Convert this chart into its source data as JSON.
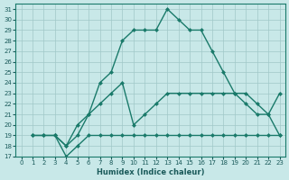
{
  "xlabel": "Humidex (Indice chaleur)",
  "bg_color": "#c8e8e8",
  "grid_color": "#a0c8c8",
  "line_color": "#1a7a6a",
  "xlim": [
    -0.5,
    23.5
  ],
  "ylim": [
    17,
    31.5
  ],
  "yticks": [
    17,
    18,
    19,
    20,
    21,
    22,
    23,
    24,
    25,
    26,
    27,
    28,
    29,
    30,
    31
  ],
  "xticks": [
    0,
    1,
    2,
    3,
    4,
    5,
    6,
    7,
    8,
    9,
    10,
    11,
    12,
    13,
    14,
    15,
    16,
    17,
    18,
    19,
    20,
    21,
    22,
    23
  ],
  "line1_x": [
    1,
    2,
    3,
    4,
    5,
    6,
    7,
    8,
    9,
    10,
    11,
    12,
    13,
    14,
    15,
    16,
    17,
    18,
    19,
    20,
    21,
    22,
    23
  ],
  "line1_y": [
    19,
    19,
    19,
    18,
    19,
    21,
    24,
    25,
    28,
    29,
    29,
    29,
    31,
    30,
    29,
    29,
    27,
    25,
    23,
    22,
    21,
    21,
    23
  ],
  "line2_x": [
    1,
    2,
    3,
    4,
    5,
    6,
    7,
    8,
    9,
    10,
    11,
    12,
    13,
    14,
    15,
    16,
    17,
    18,
    19,
    20,
    21,
    22,
    23
  ],
  "line2_y": [
    19,
    19,
    19,
    17,
    18,
    19,
    19,
    19,
    19,
    19,
    19,
    19,
    19,
    19,
    19,
    19,
    19,
    19,
    19,
    19,
    19,
    19,
    19
  ],
  "line3_x": [
    3,
    4,
    5,
    6,
    7,
    8,
    9,
    10,
    11,
    12,
    13,
    14,
    15,
    16,
    17,
    18,
    19,
    20,
    21,
    22,
    23
  ],
  "line3_y": [
    19,
    18,
    20,
    21,
    22,
    23,
    24,
    20,
    21,
    22,
    23,
    23,
    23,
    23,
    23,
    23,
    23,
    23,
    22,
    21,
    19
  ]
}
